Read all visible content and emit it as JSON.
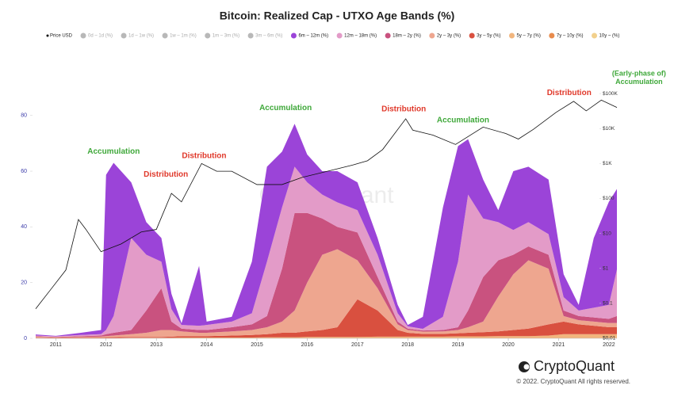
{
  "chart_data": {
    "type": "stacked_area",
    "title": "Bitcoin: Realized Cap - UTXO Age Bands (%)",
    "watermark": "CryptoQuant",
    "brand": "CryptoQuant",
    "copyright": "© 2022. CryptoQuant All rights reserved.",
    "x": [
      2010.6,
      2011.0,
      2011.5,
      2011.9,
      2012.0,
      2012.15,
      2012.5,
      2012.8,
      2013.1,
      2013.3,
      2013.5,
      2013.85,
      2014.0,
      2014.5,
      2014.9,
      2015.2,
      2015.5,
      2015.75,
      2016.0,
      2016.3,
      2016.6,
      2017.0,
      2017.4,
      2017.8,
      2018.0,
      2018.3,
      2018.7,
      2019.0,
      2019.2,
      2019.5,
      2019.8,
      2020.1,
      2020.4,
      2020.8,
      2021.1,
      2021.4,
      2021.7,
      2022.0,
      2022.16
    ],
    "xlim": [
      2010.6,
      2022.16
    ],
    "xticks": [
      2011,
      2012,
      2013,
      2014,
      2015,
      2016,
      2017,
      2018,
      2019,
      2020,
      2021,
      2022
    ],
    "ylim": [
      0,
      93
    ],
    "yticks": [
      0,
      20,
      40,
      60,
      80
    ],
    "y2lim": [
      0.01,
      257000
    ],
    "y2scale": "log",
    "y2ticks": [
      {
        "value": 0.01,
        "label": "$0.01"
      },
      {
        "value": 0.1,
        "label": "$0.1"
      },
      {
        "value": 1,
        "label": "$1"
      },
      {
        "value": 10,
        "label": "$10"
      },
      {
        "value": 100,
        "label": "$100"
      },
      {
        "value": 1000,
        "label": "$1K"
      },
      {
        "value": 10000,
        "label": "$10K"
      },
      {
        "value": 100000,
        "label": "$100K"
      }
    ],
    "grid": false,
    "legend": "top",
    "hidden_series": [
      {
        "name": "0d – 1d (%)",
        "color": "#b8b8b8"
      },
      {
        "name": "1d – 1w (%)",
        "color": "#b8b8b8"
      },
      {
        "name": "1w – 1m (%)",
        "color": "#b8b8b8"
      },
      {
        "name": "1m – 3m (%)",
        "color": "#b8b8b8"
      },
      {
        "name": "3m – 6m (%)",
        "color": "#b8b8b8"
      }
    ],
    "series": [
      {
        "name": "Price USD",
        "color": "#111111",
        "axis": "y2",
        "type": "line",
        "x": [
          2010.6,
          2010.9,
          2011.2,
          2011.45,
          2011.6,
          2011.9,
          2012.3,
          2012.7,
          2013.0,
          2013.3,
          2013.5,
          2013.9,
          2014.2,
          2014.5,
          2015.0,
          2015.5,
          2015.9,
          2016.5,
          2016.9,
          2017.2,
          2017.5,
          2017.96,
          2018.1,
          2018.5,
          2018.95,
          2019.5,
          2019.95,
          2020.2,
          2020.5,
          2020.95,
          2021.3,
          2021.55,
          2021.85,
          2022.16
        ],
        "values": [
          0.07,
          0.25,
          0.9,
          25,
          13,
          3,
          5,
          11,
          13,
          140,
          80,
          1000,
          600,
          600,
          250,
          250,
          400,
          650,
          900,
          1200,
          2500,
          19000,
          9000,
          6500,
          3500,
          11000,
          7200,
          5000,
          9500,
          29000,
          60000,
          32000,
          65000,
          40000
        ]
      },
      {
        "name": "6m – 12m (%)",
        "color": "#9b44d8",
        "values": [
          0.4,
          0.2,
          0.8,
          1.5,
          55.7,
          55,
          20,
          11.7,
          8.5,
          5.5,
          0.6,
          21.5,
          1.2,
          1.7,
          18.5,
          34.1,
          20,
          15.4,
          10,
          8.4,
          11.2,
          10,
          6,
          3,
          0.5,
          4.3,
          39.3,
          41.5,
          19.9,
          14,
          4.3,
          21.1,
          19.9,
          19.6,
          8.2,
          2,
          25,
          37,
          28.9
        ]
      },
      {
        "name": "12m – 18m (%)",
        "color": "#e39bc8",
        "values": [
          0.2,
          0.2,
          0.4,
          0.5,
          1.5,
          6,
          33,
          20,
          9.5,
          4.5,
          1.3,
          1.5,
          1.8,
          2,
          4,
          19.5,
          22,
          16.6,
          11,
          8.6,
          8.8,
          8,
          8,
          3,
          0.8,
          0.6,
          4.7,
          23.5,
          41.6,
          21,
          13.7,
          8.9,
          8.7,
          7.4,
          4.8,
          2,
          3.5,
          5,
          16.7
        ]
      },
      {
        "name": "18m – 2y (%)",
        "color": "#c9527f",
        "values": [
          0.2,
          0.1,
          0.3,
          0.4,
          0.7,
          1,
          1.5,
          8,
          15,
          3,
          1,
          1,
          1,
          1.5,
          2,
          4,
          19,
          35,
          25,
          13,
          8,
          10,
          4,
          1,
          0.5,
          0.4,
          0.5,
          1,
          6,
          16,
          13,
          7,
          5,
          5,
          2,
          1.5,
          1.5,
          1.5,
          2.5
        ]
      },
      {
        "name": "2y – 3y (%)",
        "color": "#eea68f",
        "values": [
          0.2,
          0.1,
          0.2,
          0.3,
          0.4,
          0.6,
          1,
          1.5,
          2.5,
          2.4,
          1.7,
          1.2,
          1.2,
          1.5,
          1.8,
          2.5,
          4,
          8,
          17.5,
          27,
          28,
          14,
          8,
          2,
          1,
          0.8,
          0.9,
          1.2,
          2,
          3.8,
          12.5,
          20,
          24.5,
          20,
          2,
          1.5,
          1.5,
          1.5,
          1.5
        ]
      },
      {
        "name": "3y – 5y (%)",
        "color": "#d9503f",
        "values": [
          0.2,
          0.2,
          0.2,
          0.2,
          0.3,
          0.3,
          0.3,
          0.3,
          0.3,
          0.4,
          0.5,
          0.5,
          0.5,
          0.7,
          0.9,
          1.1,
          1.6,
          1.6,
          2,
          2.5,
          3.5,
          13.5,
          9.4,
          2.4,
          1.4,
          1,
          1,
          1.1,
          1.3,
          1.5,
          1.7,
          2.2,
          2.7,
          4,
          4.5,
          3.5,
          3,
          2.5,
          2.5
        ]
      },
      {
        "name": "5y – 7y (%)",
        "color": "#f1b57d",
        "values": [
          0.1,
          0,
          0,
          0,
          0,
          0,
          0.1,
          0.1,
          0.1,
          0.1,
          0.2,
          0.2,
          0.2,
          0.2,
          0.2,
          0.3,
          0.3,
          0.3,
          0.4,
          0.4,
          0.4,
          0.4,
          0.5,
          0.5,
          0.5,
          0.5,
          0.5,
          0.6,
          0.6,
          0.6,
          0.7,
          0.7,
          0.7,
          0.9,
          1.4,
          1.4,
          1.4,
          1.4,
          1.4
        ]
      },
      {
        "name": "7y – 10y (%)",
        "color": "#e88b4c",
        "values": [
          0.05,
          0.05,
          0.05,
          0.05,
          0.05,
          0.05,
          0.05,
          0.05,
          0.05,
          0.05,
          0.05,
          0.05,
          0.05,
          0.05,
          0.05,
          0.05,
          0.05,
          0.05,
          0.05,
          0.05,
          0.05,
          0.05,
          0.05,
          0.05,
          0.05,
          0.05,
          0.05,
          0.05,
          0.05,
          0.05,
          0.05,
          0.05,
          0.05,
          0.05,
          0.05,
          0.05,
          0.05,
          0.05,
          0.05
        ]
      },
      {
        "name": "10y ~ (%)",
        "color": "#f2d08c",
        "values": [
          0.05,
          0.05,
          0.05,
          0.05,
          0.05,
          0.05,
          0.05,
          0.05,
          0.05,
          0.05,
          0.05,
          0.05,
          0.05,
          0.05,
          0.05,
          0.05,
          0.05,
          0.05,
          0.05,
          0.05,
          0.05,
          0.05,
          0.05,
          0.05,
          0.05,
          0.05,
          0.05,
          0.05,
          0.05,
          0.05,
          0.05,
          0.05,
          0.05,
          0.05,
          0.05,
          0.05,
          0.05,
          0.05,
          0.05
        ]
      }
    ],
    "annotations": [
      {
        "text": "Accumulation",
        "x": 2012.15,
        "y": 67,
        "color": "#3fa83a"
      },
      {
        "text": "Distribution",
        "x": 2013.19,
        "y": 58.7,
        "color": "#e0392b"
      },
      {
        "text": "Distribution",
        "x": 2013.95,
        "y": 65.5,
        "color": "#e0392b"
      },
      {
        "text": "Accumulation",
        "x": 2015.57,
        "y": 82.6,
        "color": "#3fa83a"
      },
      {
        "text": "Distribution",
        "x": 2017.92,
        "y": 82.3,
        "color": "#e0392b"
      },
      {
        "text": "Accumulation",
        "x": 2019.1,
        "y": 78.3,
        "color": "#3fa83a"
      },
      {
        "text": "Distribution",
        "x": 2021.21,
        "y": 88,
        "color": "#e0392b"
      },
      {
        "text": "(Early-phase of)",
        "x": 2022.6,
        "y": 95,
        "color": "#3fa83a"
      },
      {
        "text": "Accumulation",
        "x": 2022.6,
        "y": 92,
        "color": "#3fa83a"
      }
    ]
  }
}
